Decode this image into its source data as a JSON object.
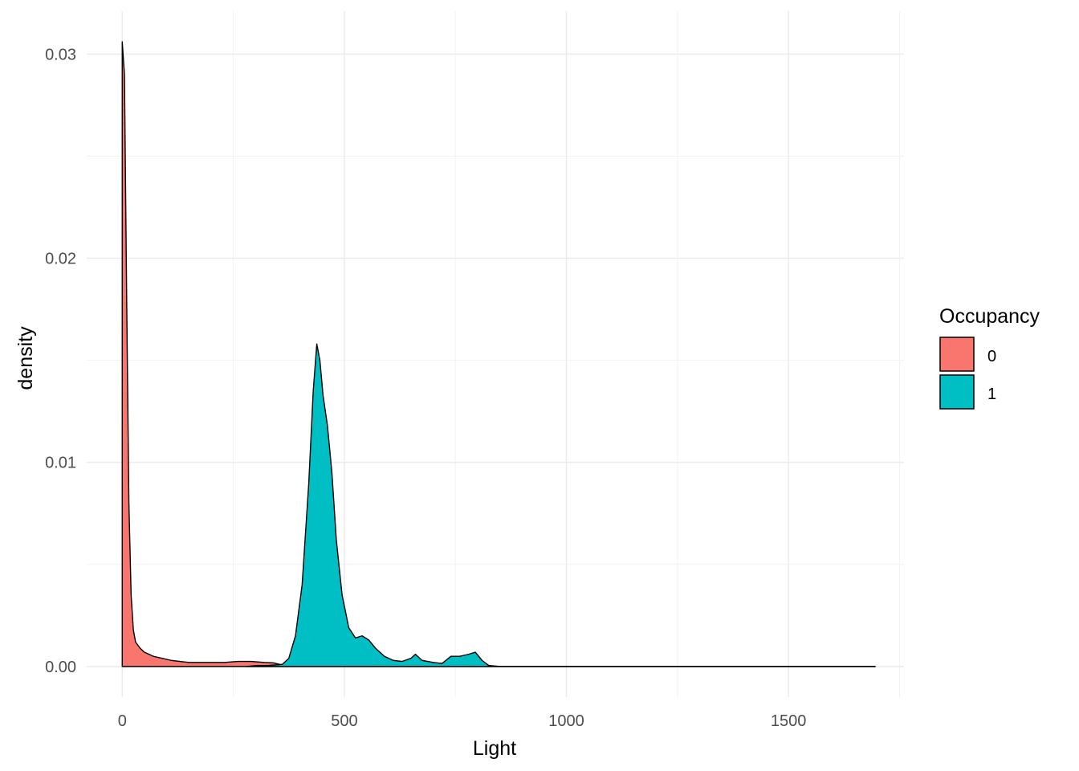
{
  "chart_data": {
    "type": "area",
    "subtype": "density",
    "xlabel": "Light",
    "ylabel": "density",
    "xlim": [
      -80,
      1760
    ],
    "ylim": [
      -0.0015,
      0.0321
    ],
    "x_ticks": [
      0,
      500,
      1000,
      1500
    ],
    "x_tick_labels": [
      "0",
      "500",
      "1000",
      "1500"
    ],
    "y_ticks": [
      0.0,
      0.01,
      0.02,
      0.03
    ],
    "y_tick_labels": [
      "0.00",
      "0.01",
      "0.02",
      "0.03"
    ],
    "grid": true,
    "legend": {
      "title": "Occupancy",
      "placement": "right"
    },
    "series": [
      {
        "name": "0",
        "color": "#F8766D",
        "points": [
          [
            0,
            0
          ],
          [
            0,
            0.0306
          ],
          [
            5,
            0.029
          ],
          [
            10,
            0.018
          ],
          [
            15,
            0.008
          ],
          [
            20,
            0.0035
          ],
          [
            25,
            0.0018
          ],
          [
            30,
            0.0012
          ],
          [
            40,
            0.0009
          ],
          [
            50,
            0.0007
          ],
          [
            70,
            0.0005
          ],
          [
            90,
            0.0004
          ],
          [
            110,
            0.0003
          ],
          [
            130,
            0.00025
          ],
          [
            150,
            0.0002
          ],
          [
            170,
            0.0002
          ],
          [
            200,
            0.0002
          ],
          [
            230,
            0.0002
          ],
          [
            260,
            0.00025
          ],
          [
            290,
            0.00025
          ],
          [
            320,
            0.0002
          ],
          [
            340,
            0.00018
          ],
          [
            355,
            0.0001
          ],
          [
            370,
            5e-05
          ],
          [
            380,
            2e-05
          ],
          [
            395,
            0
          ],
          [
            1695,
            0
          ]
        ]
      },
      {
        "name": "1",
        "color": "#00BFC4",
        "points": [
          [
            280,
            0
          ],
          [
            300,
            4e-05
          ],
          [
            330,
            5e-05
          ],
          [
            360,
            0.0001
          ],
          [
            375,
            0.0004
          ],
          [
            390,
            0.0015
          ],
          [
            405,
            0.004
          ],
          [
            420,
            0.009
          ],
          [
            430,
            0.0135
          ],
          [
            438,
            0.0158
          ],
          [
            445,
            0.015
          ],
          [
            452,
            0.0133
          ],
          [
            462,
            0.0118
          ],
          [
            472,
            0.0095
          ],
          [
            482,
            0.0062
          ],
          [
            495,
            0.0035
          ],
          [
            510,
            0.0019
          ],
          [
            525,
            0.0014
          ],
          [
            540,
            0.0015
          ],
          [
            555,
            0.0013
          ],
          [
            570,
            0.0009
          ],
          [
            590,
            0.0005
          ],
          [
            610,
            0.0003
          ],
          [
            630,
            0.00025
          ],
          [
            650,
            0.0004
          ],
          [
            660,
            0.0006
          ],
          [
            675,
            0.0003
          ],
          [
            700,
            0.0002
          ],
          [
            720,
            0.00015
          ],
          [
            740,
            0.0005
          ],
          [
            760,
            0.0005
          ],
          [
            780,
            0.0006
          ],
          [
            795,
            0.0007
          ],
          [
            810,
            0.0003
          ],
          [
            825,
            5e-05
          ],
          [
            850,
            0
          ],
          [
            1695,
            0
          ]
        ]
      }
    ]
  }
}
